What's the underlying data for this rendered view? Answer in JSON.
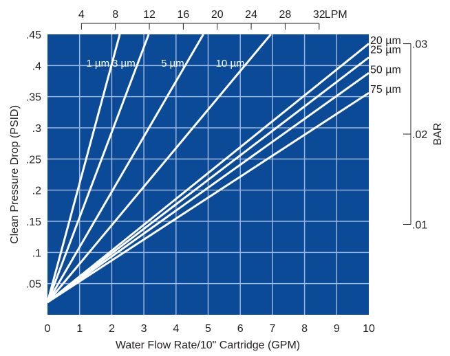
{
  "chart_data": {
    "type": "line",
    "xlabel": "Water Flow Rate/10\" Cartridge (GPM)",
    "ylabel": "Clean Pressure Drop (PSID)",
    "xlim": [
      0,
      10
    ],
    "ylim": [
      0,
      0.45
    ],
    "x_ticks": [
      "0",
      "1",
      "2",
      "3",
      "4",
      "5",
      "6",
      "7",
      "8",
      "9",
      "10"
    ],
    "y_ticks": [
      ".05",
      ".1",
      ".15",
      ".2",
      ".25",
      ".3",
      ".35",
      ".4",
      ".45"
    ],
    "y_tick_values": [
      0.05,
      0.1,
      0.15,
      0.2,
      0.25,
      0.3,
      0.35,
      0.4,
      0.45
    ],
    "grid": true,
    "series": [
      {
        "name": "1 µm",
        "x": [
          0,
          2.25
        ],
        "y": [
          0.02,
          0.45
        ]
      },
      {
        "name": "3 µm",
        "x": [
          0,
          3.15
        ],
        "y": [
          0.02,
          0.45
        ]
      },
      {
        "name": "5 µm",
        "x": [
          0,
          4.85
        ],
        "y": [
          0.02,
          0.45
        ]
      },
      {
        "name": "10 µm",
        "x": [
          0,
          6.95
        ],
        "y": [
          0.02,
          0.45
        ]
      },
      {
        "name": "20 µm",
        "x": [
          0,
          10
        ],
        "y": [
          0.02,
          0.435
        ]
      },
      {
        "name": "25 µm",
        "x": [
          0,
          10
        ],
        "y": [
          0.02,
          0.413
        ]
      },
      {
        "name": "50 µm",
        "x": [
          0,
          10
        ],
        "y": [
          0.02,
          0.388
        ]
      },
      {
        "name": "75 µm",
        "x": [
          0,
          10
        ],
        "y": [
          0.02,
          0.356
        ]
      }
    ],
    "label_series": [
      "1 µm",
      "3 µm",
      "5 µm",
      "10 µm"
    ],
    "outside_labels": [
      {
        "text": "20 µm",
        "y": 0.44
      },
      {
        "text": "25 µm",
        "y": 0.425
      },
      {
        "text": "50 µm",
        "y": 0.393
      },
      {
        "text": "75 µm",
        "y": 0.362
      }
    ],
    "lpm_axis": {
      "unit": "LPM",
      "ticks": [
        "4",
        "8",
        "12",
        "16",
        "20",
        "24",
        "28",
        "32"
      ],
      "gpm_values": [
        1.057,
        2.113,
        3.17,
        4.227,
        5.283,
        6.34,
        7.397,
        8.454
      ]
    },
    "bar_axis": {
      "label": "BAR",
      "ticks": [
        ".01",
        ".02",
        ".03"
      ],
      "psid_values": [
        0.145,
        0.29,
        0.435
      ]
    },
    "colors": {
      "plot_background": "#0a4a97",
      "grid": "#9db6dc",
      "lines": "#ffffff",
      "text": "#231f20"
    }
  }
}
